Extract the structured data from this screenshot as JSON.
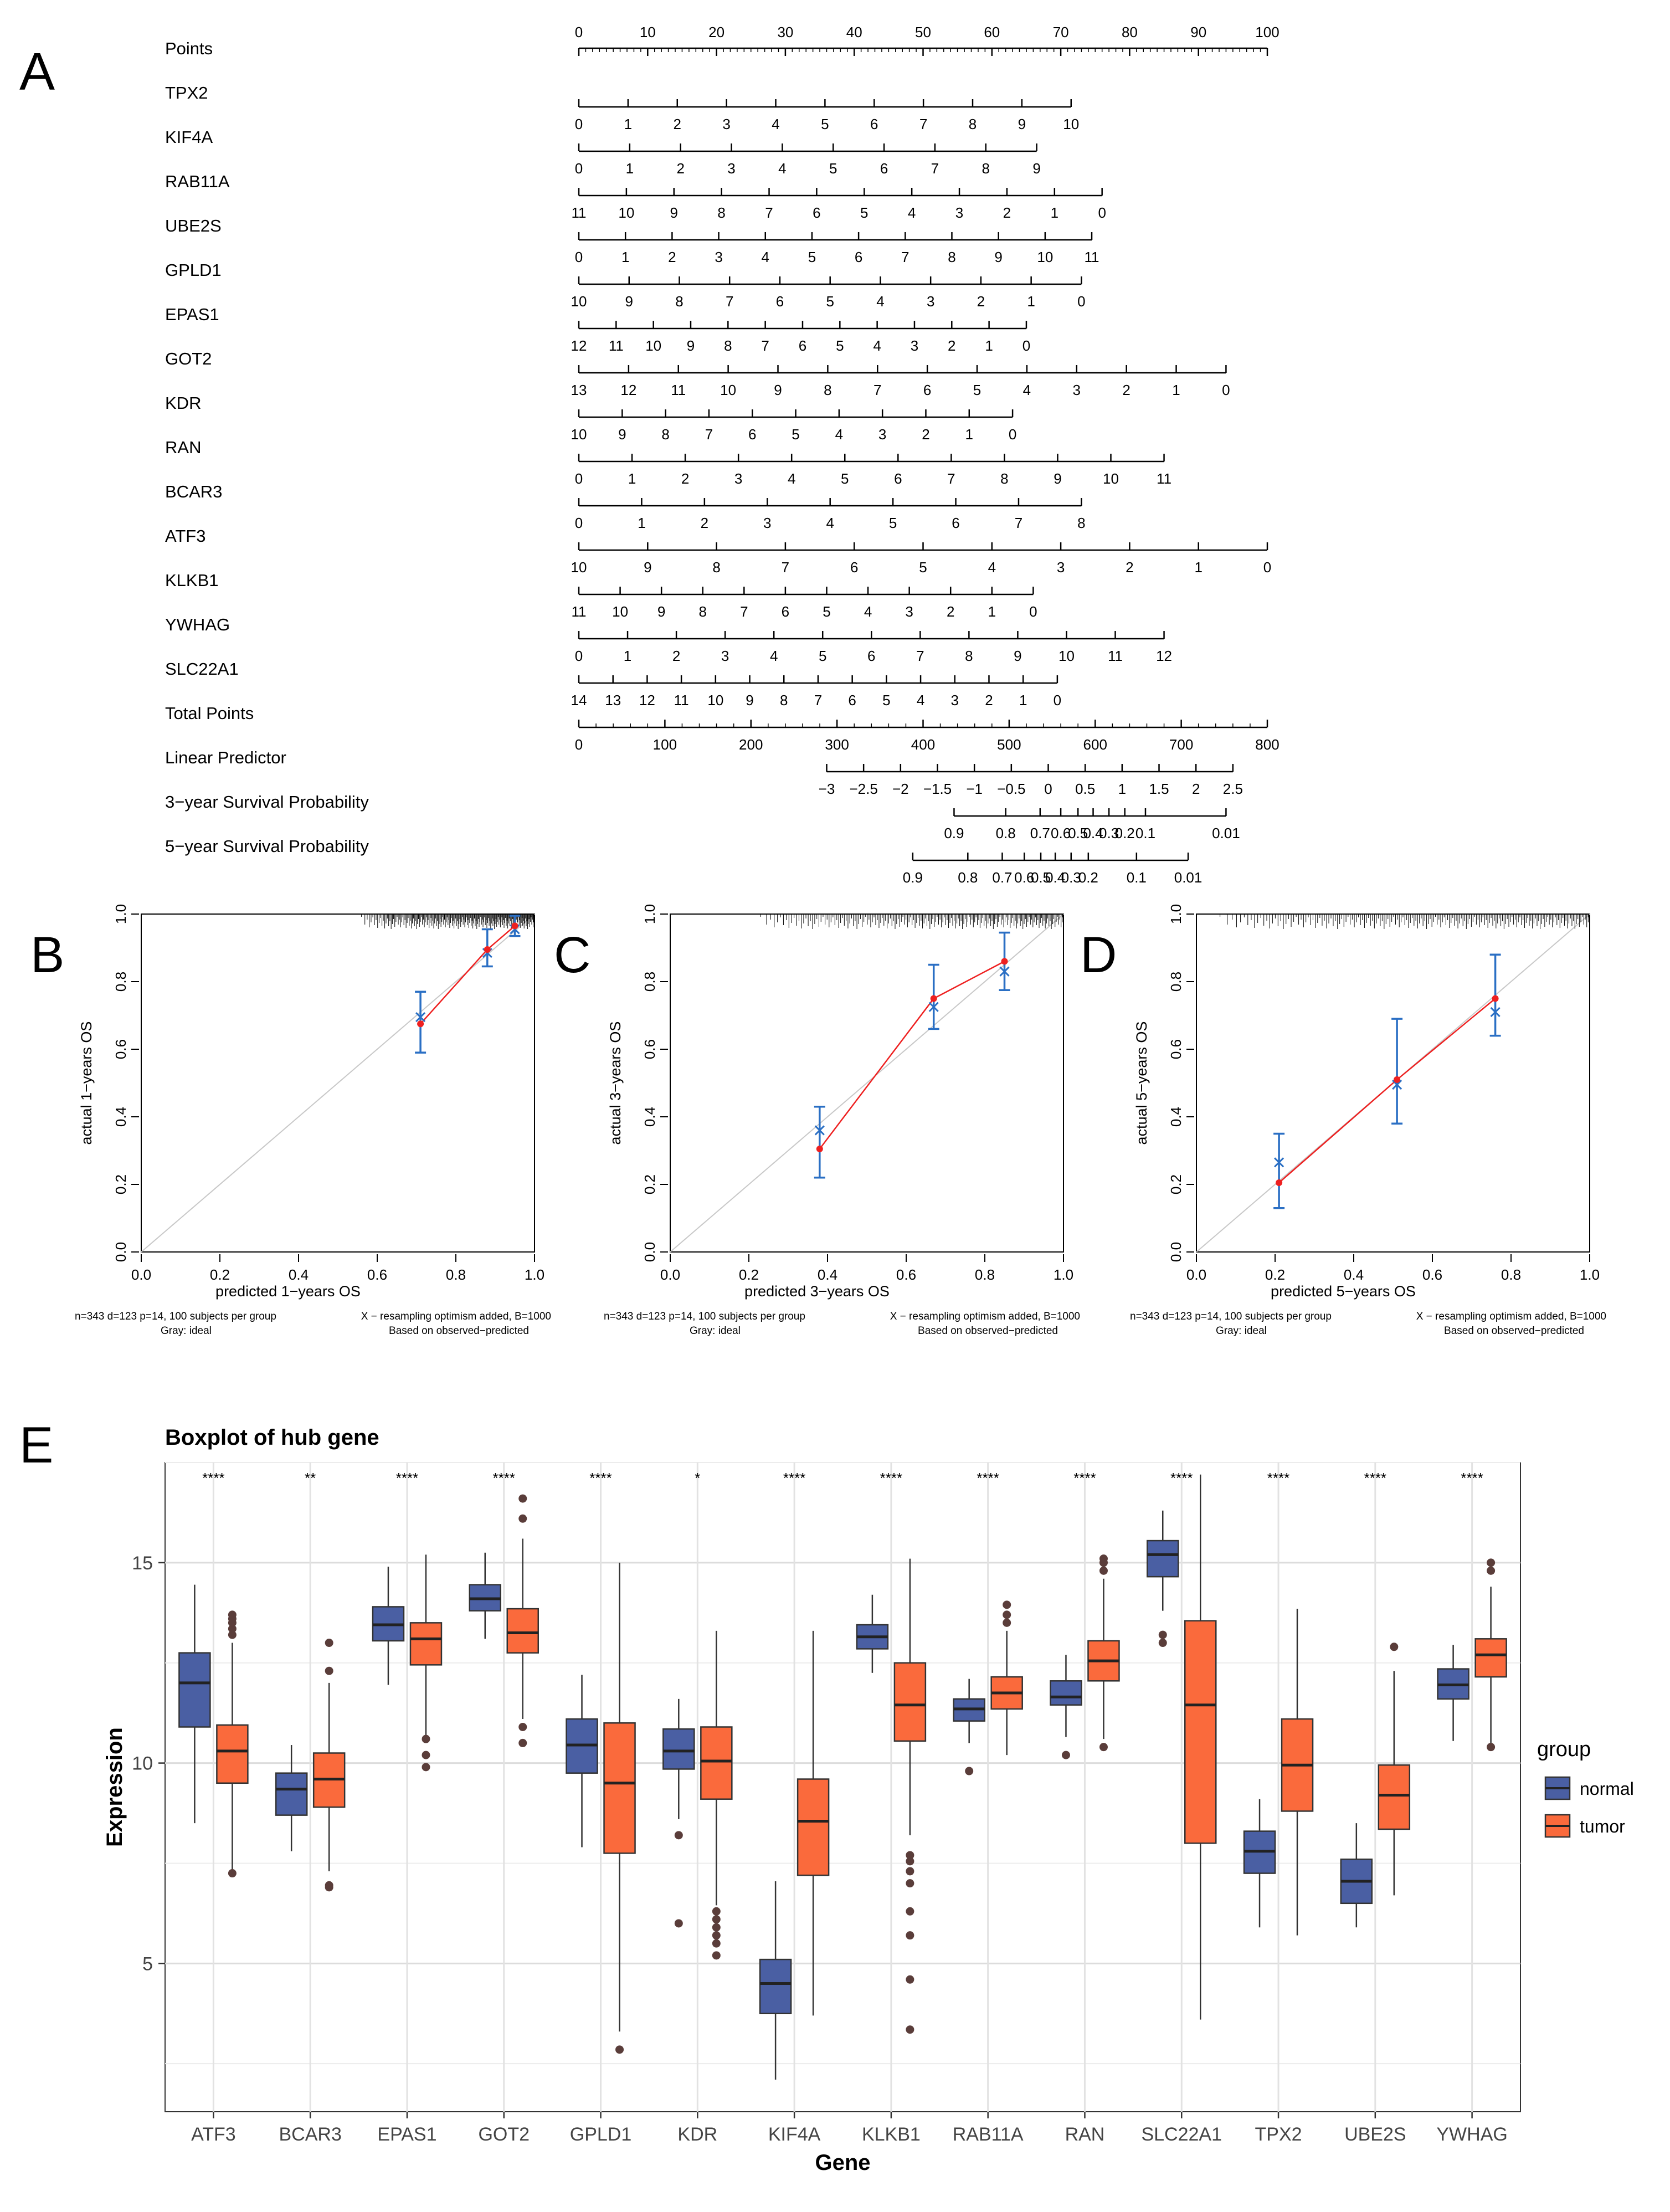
{
  "panel_letters": {
    "a": "A",
    "b": "B",
    "c": "C",
    "d": "D",
    "e": "E"
  },
  "chart_data": [
    {
      "type": "nomogram",
      "panel": "A",
      "rows": [
        {
          "label": "Points",
          "ticks": [
            "0",
            "10",
            "20",
            "30",
            "40",
            "50",
            "60",
            "70",
            "80",
            "90",
            "100"
          ],
          "tick_span": [
            0,
            100
          ],
          "minor_ticks": 100,
          "label_pos": "above"
        },
        {
          "label": "TPX2",
          "ticks": [
            "0",
            "1",
            "2",
            "3",
            "4",
            "5",
            "6",
            "7",
            "8",
            "9",
            "10"
          ],
          "tick_span": [
            0,
            71.5
          ]
        },
        {
          "label": "KIF4A",
          "ticks": [
            "0",
            "1",
            "2",
            "3",
            "4",
            "5",
            "6",
            "7",
            "8",
            "9"
          ],
          "tick_span": [
            0,
            66.5
          ]
        },
        {
          "label": "RAB11A",
          "ticks": [
            "11",
            "10",
            "9",
            "8",
            "7",
            "6",
            "5",
            "4",
            "3",
            "2",
            "1",
            "0"
          ],
          "tick_span": [
            0,
            76
          ]
        },
        {
          "label": "UBE2S",
          "ticks": [
            "0",
            "1",
            "2",
            "3",
            "4",
            "5",
            "6",
            "7",
            "8",
            "9",
            "10",
            "11"
          ],
          "tick_span": [
            0,
            74.5
          ]
        },
        {
          "label": "GPLD1",
          "ticks": [
            "10",
            "9",
            "8",
            "7",
            "6",
            "5",
            "4",
            "3",
            "2",
            "1",
            "0"
          ],
          "tick_span": [
            0,
            73
          ]
        },
        {
          "label": "EPAS1",
          "ticks": [
            "12",
            "11",
            "10",
            "9",
            "8",
            "7",
            "6",
            "5",
            "4",
            "3",
            "2",
            "1",
            "0"
          ],
          "tick_span": [
            0,
            65
          ]
        },
        {
          "label": "GOT2",
          "ticks": [
            "13",
            "12",
            "11",
            "10",
            "9",
            "8",
            "7",
            "6",
            "5",
            "4",
            "3",
            "2",
            "1",
            "0"
          ],
          "tick_span": [
            0,
            94
          ]
        },
        {
          "label": "KDR",
          "ticks": [
            "10",
            "9",
            "8",
            "7",
            "6",
            "5",
            "4",
            "3",
            "2",
            "1",
            "0"
          ],
          "tick_span": [
            0,
            63
          ]
        },
        {
          "label": "RAN",
          "ticks": [
            "0",
            "1",
            "2",
            "3",
            "4",
            "5",
            "6",
            "7",
            "8",
            "9",
            "10",
            "11"
          ],
          "tick_span": [
            0,
            85
          ]
        },
        {
          "label": "BCAR3",
          "ticks": [
            "0",
            "1",
            "2",
            "3",
            "4",
            "5",
            "6",
            "7",
            "8"
          ],
          "tick_span": [
            0,
            73
          ]
        },
        {
          "label": "ATF3",
          "ticks": [
            "10",
            "9",
            "8",
            "7",
            "6",
            "5",
            "4",
            "3",
            "2",
            "1",
            "0"
          ],
          "tick_span": [
            0,
            100
          ]
        },
        {
          "label": "KLKB1",
          "ticks": [
            "11",
            "10",
            "9",
            "8",
            "7",
            "6",
            "5",
            "4",
            "3",
            "2",
            "1",
            "0"
          ],
          "tick_span": [
            0,
            66
          ]
        },
        {
          "label": "YWHAG",
          "ticks": [
            "0",
            "1",
            "2",
            "3",
            "4",
            "5",
            "6",
            "7",
            "8",
            "9",
            "10",
            "11",
            "12"
          ],
          "tick_span": [
            0,
            85
          ]
        },
        {
          "label": "SLC22A1",
          "ticks": [
            "14",
            "13",
            "12",
            "11",
            "10",
            "9",
            "8",
            "7",
            "6",
            "5",
            "4",
            "3",
            "2",
            "1",
            "0"
          ],
          "tick_span": [
            0,
            69.5
          ]
        },
        {
          "label": "Total Points",
          "ticks": [
            "0",
            "100",
            "200",
            "300",
            "400",
            "500",
            "600",
            "700",
            "800"
          ],
          "tick_span": [
            0,
            100
          ],
          "minor_ticks": 40
        },
        {
          "label": "Linear Predictor",
          "ticks": [
            "−3",
            "−2.5",
            "−2",
            "−1.5",
            "−1",
            "−0.5",
            "0",
            "0.5",
            "1",
            "1.5",
            "2",
            "2.5"
          ],
          "tick_span": [
            36,
            95
          ]
        },
        {
          "label": "3−year Survival Probability",
          "ticks": [
            "0.9",
            "0.8",
            "0.7",
            "0.6",
            "0.5",
            "0.4",
            "0.3",
            "0.2",
            "0.1",
            "0.01"
          ],
          "tick_pos": [
            54.5,
            62,
            67,
            70,
            72.5,
            74.7,
            77,
            79.3,
            82.3,
            94
          ]
        },
        {
          "label": "5−year Survival Probability",
          "ticks": [
            "0.9",
            "0.8",
            "0.7",
            "0.6",
            "0.5",
            "0.4",
            "0.3",
            "0.2",
            "0.1",
            "0.01"
          ],
          "tick_pos": [
            48.5,
            56.5,
            61.5,
            64.7,
            67.1,
            69.2,
            71.5,
            74,
            81,
            88.5
          ]
        }
      ]
    },
    {
      "type": "calibration",
      "panel": "B",
      "xlabel": "predicted 1−years OS",
      "ylabel": "actual 1−years OS",
      "xlim": [
        0,
        1
      ],
      "ylim": [
        0,
        1
      ],
      "ticks": [
        "0.0",
        "0.2",
        "0.4",
        "0.6",
        "0.8",
        "1.0"
      ],
      "points": [
        {
          "x": 0.71,
          "y": 0.675,
          "corrected": 0.695,
          "lo": 0.59,
          "hi": 0.77
        },
        {
          "x": 0.88,
          "y": 0.895,
          "corrected": 0.885,
          "lo": 0.845,
          "hi": 0.955
        },
        {
          "x": 0.95,
          "y": 0.965,
          "corrected": 0.955,
          "lo": 0.935,
          "hi": 0.995
        }
      ],
      "footnote_left": [
        "n=343 d=123 p=14, 100 subjects per group",
        "Gray: ideal"
      ],
      "footnote_right": [
        "X − resampling optimism added, B=1000",
        "Based on observed−predicted"
      ]
    },
    {
      "type": "calibration",
      "panel": "C",
      "xlabel": "predicted 3−years OS",
      "ylabel": "actual 3−years OS",
      "xlim": [
        0,
        1
      ],
      "ylim": [
        0,
        1
      ],
      "ticks": [
        "0.0",
        "0.2",
        "0.4",
        "0.6",
        "0.8",
        "1.0"
      ],
      "points": [
        {
          "x": 0.38,
          "y": 0.305,
          "corrected": 0.36,
          "lo": 0.22,
          "hi": 0.43
        },
        {
          "x": 0.67,
          "y": 0.75,
          "corrected": 0.725,
          "lo": 0.66,
          "hi": 0.85
        },
        {
          "x": 0.85,
          "y": 0.86,
          "corrected": 0.83,
          "lo": 0.775,
          "hi": 0.945
        }
      ],
      "footnote_left": [
        "n=343 d=123 p=14, 100 subjects per group",
        "Gray: ideal"
      ],
      "footnote_right": [
        "X − resampling optimism added, B=1000",
        "Based on observed−predicted"
      ]
    },
    {
      "type": "calibration",
      "panel": "D",
      "xlabel": "predicted 5−years OS",
      "ylabel": "actual 5−years OS",
      "xlim": [
        0,
        1
      ],
      "ylim": [
        0,
        1
      ],
      "ticks": [
        "0.0",
        "0.2",
        "0.4",
        "0.6",
        "0.8",
        "1.0"
      ],
      "points": [
        {
          "x": 0.21,
          "y": 0.205,
          "corrected": 0.265,
          "lo": 0.13,
          "hi": 0.35
        },
        {
          "x": 0.51,
          "y": 0.51,
          "corrected": 0.495,
          "lo": 0.38,
          "hi": 0.69
        },
        {
          "x": 0.76,
          "y": 0.75,
          "corrected": 0.71,
          "lo": 0.64,
          "hi": 0.88
        }
      ],
      "footnote_left": [
        "n=343 d=123 p=14, 100 subjects per group",
        "Gray: ideal"
      ],
      "footnote_right": [
        "X − resampling optimism added, B=1000",
        "Based on observed−predicted"
      ]
    },
    {
      "type": "boxplot",
      "panel": "E",
      "title": "Boxplot of hub gene",
      "xlabel": "Gene",
      "ylabel": "Expression",
      "ylim": [
        1.3,
        17.5
      ],
      "yticks": [
        5,
        10,
        15
      ],
      "ytick_labels": [
        "5",
        "10",
        "15"
      ],
      "legend": {
        "title": "group",
        "entries": [
          "normal",
          "tumor"
        ],
        "colors": [
          "#4a5fa3",
          "#fa6a3c"
        ]
      },
      "categories": [
        "ATF3",
        "BCAR3",
        "EPAS1",
        "GOT2",
        "GPLD1",
        "KDR",
        "KIF4A",
        "KLKB1",
        "RAB11A",
        "RAN",
        "SLC22A1",
        "TPX2",
        "UBE2S",
        "YWHAG"
      ],
      "significance": [
        "****",
        "**",
        "****",
        "****",
        "****",
        "*",
        "****",
        "****",
        "****",
        "****",
        "****",
        "****",
        "****",
        "****"
      ],
      "series": [
        {
          "name": "normal",
          "boxes": [
            {
              "min": 8.5,
              "q1": 10.9,
              "median": 12.0,
              "q3": 12.75,
              "max": 14.45,
              "outliers": []
            },
            {
              "min": 7.8,
              "q1": 8.7,
              "median": 9.35,
              "q3": 9.75,
              "max": 10.45,
              "outliers": []
            },
            {
              "min": 11.95,
              "q1": 13.05,
              "median": 13.45,
              "q3": 13.9,
              "max": 14.9,
              "outliers": []
            },
            {
              "min": 13.1,
              "q1": 13.8,
              "median": 14.1,
              "q3": 14.45,
              "max": 15.25,
              "outliers": []
            },
            {
              "min": 7.9,
              "q1": 9.75,
              "median": 10.45,
              "q3": 11.1,
              "max": 12.2,
              "outliers": []
            },
            {
              "min": 8.6,
              "q1": 9.85,
              "median": 10.3,
              "q3": 10.85,
              "max": 11.6,
              "outliers": [
                8.2,
                6.0
              ]
            },
            {
              "min": 2.1,
              "q1": 3.75,
              "median": 4.5,
              "q3": 5.1,
              "max": 7.05,
              "outliers": []
            },
            {
              "min": 12.25,
              "q1": 12.85,
              "median": 13.15,
              "q3": 13.45,
              "max": 14.2,
              "outliers": []
            },
            {
              "min": 10.5,
              "q1": 11.05,
              "median": 11.35,
              "q3": 11.6,
              "max": 12.1,
              "outliers": [
                9.8
              ]
            },
            {
              "min": 10.65,
              "q1": 11.45,
              "median": 11.65,
              "q3": 12.05,
              "max": 12.7,
              "outliers": [
                10.2
              ]
            },
            {
              "min": 13.8,
              "q1": 14.65,
              "median": 15.2,
              "q3": 15.55,
              "max": 16.3,
              "outliers": [
                13.2,
                13.0
              ]
            },
            {
              "min": 5.9,
              "q1": 7.25,
              "median": 7.8,
              "q3": 8.3,
              "max": 9.1,
              "outliers": []
            },
            {
              "min": 5.9,
              "q1": 6.5,
              "median": 7.05,
              "q3": 7.6,
              "max": 8.5,
              "outliers": []
            },
            {
              "min": 10.55,
              "q1": 11.6,
              "median": 11.95,
              "q3": 12.35,
              "max": 12.95,
              "outliers": []
            }
          ]
        },
        {
          "name": "tumor",
          "boxes": [
            {
              "min": 7.3,
              "q1": 9.5,
              "median": 10.3,
              "q3": 10.95,
              "max": 13.0,
              "outliers": [
                13.2,
                13.35,
                13.5,
                13.6,
                13.7,
                7.25
              ]
            },
            {
              "min": 7.3,
              "q1": 8.9,
              "median": 9.6,
              "q3": 10.25,
              "max": 12.0,
              "outliers": [
                12.3,
                13.0,
                6.95,
                6.9
              ]
            },
            {
              "min": 10.7,
              "q1": 12.45,
              "median": 13.1,
              "q3": 13.5,
              "max": 15.2,
              "outliers": [
                10.6,
                10.2,
                9.9
              ]
            },
            {
              "min": 11.1,
              "q1": 12.75,
              "median": 13.25,
              "q3": 13.85,
              "max": 15.6,
              "outliers": [
                16.1,
                16.6,
                10.9,
                10.5
              ]
            },
            {
              "min": 3.3,
              "q1": 7.75,
              "median": 9.5,
              "q3": 11.0,
              "max": 15.0,
              "outliers": [
                2.85
              ]
            },
            {
              "min": 6.45,
              "q1": 9.1,
              "median": 10.05,
              "q3": 10.9,
              "max": 13.3,
              "outliers": [
                6.3,
                6.1,
                5.9,
                5.7,
                5.5,
                5.2
              ]
            },
            {
              "min": 3.7,
              "q1": 7.2,
              "median": 8.55,
              "q3": 9.6,
              "max": 13.3,
              "outliers": []
            },
            {
              "min": 8.2,
              "q1": 10.55,
              "median": 11.45,
              "q3": 12.5,
              "max": 15.1,
              "outliers": [
                7.7,
                7.55,
                7.3,
                7.0,
                6.3,
                5.7,
                4.6,
                3.35
              ]
            },
            {
              "min": 10.2,
              "q1": 11.35,
              "median": 11.75,
              "q3": 12.15,
              "max": 13.3,
              "outliers": [
                13.5,
                13.7,
                13.95
              ]
            },
            {
              "min": 10.6,
              "q1": 12.05,
              "median": 12.55,
              "q3": 13.05,
              "max": 14.6,
              "outliers": [
                14.8,
                15.0,
                15.1,
                10.4
              ]
            },
            {
              "min": 3.6,
              "q1": 8.0,
              "median": 11.45,
              "q3": 13.55,
              "max": 17.2,
              "outliers": []
            },
            {
              "min": 5.7,
              "q1": 8.8,
              "median": 9.95,
              "q3": 11.1,
              "max": 13.85,
              "outliers": []
            },
            {
              "min": 6.7,
              "q1": 8.35,
              "median": 9.2,
              "q3": 9.95,
              "max": 12.3,
              "outliers": [
                12.9
              ]
            },
            {
              "min": 10.5,
              "q1": 12.15,
              "median": 12.7,
              "q3": 13.1,
              "max": 14.4,
              "outliers": [
                14.8,
                15.0,
                10.4
              ]
            }
          ]
        }
      ]
    }
  ]
}
